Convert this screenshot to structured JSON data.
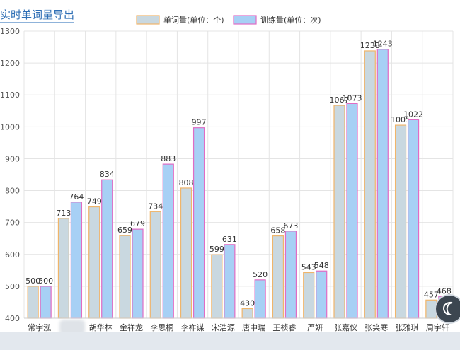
{
  "page": {
    "title": "实时单词量导出"
  },
  "chart_data": {
    "type": "bar",
    "categories": [
      "常宇泓",
      "",
      "胡华林",
      "金祥龙",
      "李思桐",
      "李祚谋",
      "宋浩源",
      "唐中瑞",
      "王祯睿",
      "严妍",
      "张嘉仪",
      "张笑寒",
      "张雅琪",
      "周宇轩"
    ],
    "series": [
      {
        "name": "单词量(单位：个)",
        "values": [
          500,
          713,
          749,
          659,
          734,
          808,
          599,
          430,
          658,
          543,
          1067,
          1238,
          1005,
          457
        ],
        "fill": "#c9d8e0",
        "stroke": "#f0b56a"
      },
      {
        "name": "训练量(单位：次)",
        "values": [
          500,
          764,
          834,
          679,
          883,
          997,
          631,
          520,
          673,
          548,
          1073,
          1243,
          1022,
          468
        ],
        "fill": "#a7d0f5",
        "stroke": "#e06cc4"
      }
    ],
    "ylim": [
      400,
      1300
    ],
    "yticks": [
      400,
      500,
      600,
      700,
      800,
      900,
      1000,
      1100,
      1200,
      1300
    ],
    "grid": true,
    "legend": "top-center",
    "title": "",
    "xlabel": "",
    "ylabel": ""
  },
  "colors": {
    "title": "#2f6fb5",
    "grid": "#e4e4e4",
    "axis_text": "#555555"
  },
  "icons": {
    "floating_button": "moon-icon"
  }
}
